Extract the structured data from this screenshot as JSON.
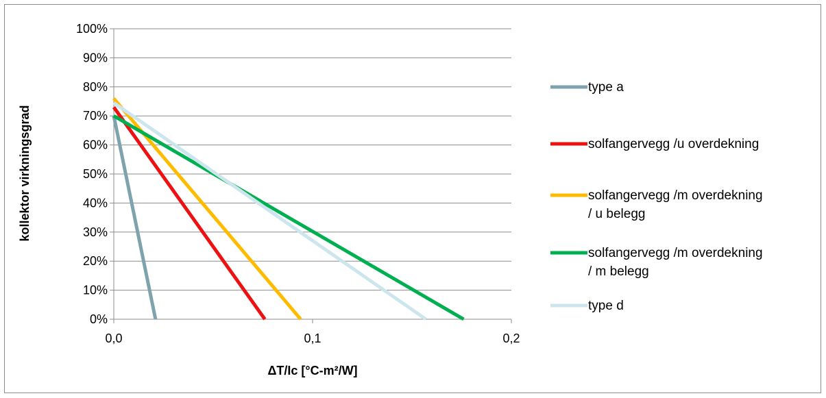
{
  "chart_data": {
    "type": "line",
    "xlabel": "ΔT/Ic [°C-m²/W]",
    "ylabel": "kollektor virkningsgrad",
    "xlim": [
      0,
      0.2
    ],
    "ylim": [
      0,
      1
    ],
    "x_ticks": [
      "0,0",
      "0,1",
      "0,2"
    ],
    "y_ticks": [
      "0%",
      "10%",
      "20%",
      "30%",
      "40%",
      "50%",
      "60%",
      "70%",
      "80%",
      "90%",
      "100%"
    ],
    "grid": "horizontal",
    "legend_position": "right",
    "series": [
      {
        "name": "type a",
        "color": "#7fa3ad",
        "x": [
          0,
          0.021
        ],
        "y": [
          0.7,
          0
        ]
      },
      {
        "name": "solfangervegg /u overdekning",
        "color": "#ee1111",
        "x": [
          0,
          0.076
        ],
        "y": [
          0.73,
          0
        ]
      },
      {
        "name": "solfangervegg /m overdekning / u belegg",
        "color": "#ffbb00",
        "x": [
          0,
          0.094
        ],
        "y": [
          0.76,
          0
        ]
      },
      {
        "name": "solfangervegg /m overdekning / m belegg",
        "color": "#00b050",
        "x": [
          0,
          0.176
        ],
        "y": [
          0.7,
          0
        ]
      },
      {
        "name": "type d",
        "color": "#cde6ee",
        "x": [
          0,
          0.157
        ],
        "y": [
          0.745,
          0
        ]
      }
    ]
  }
}
